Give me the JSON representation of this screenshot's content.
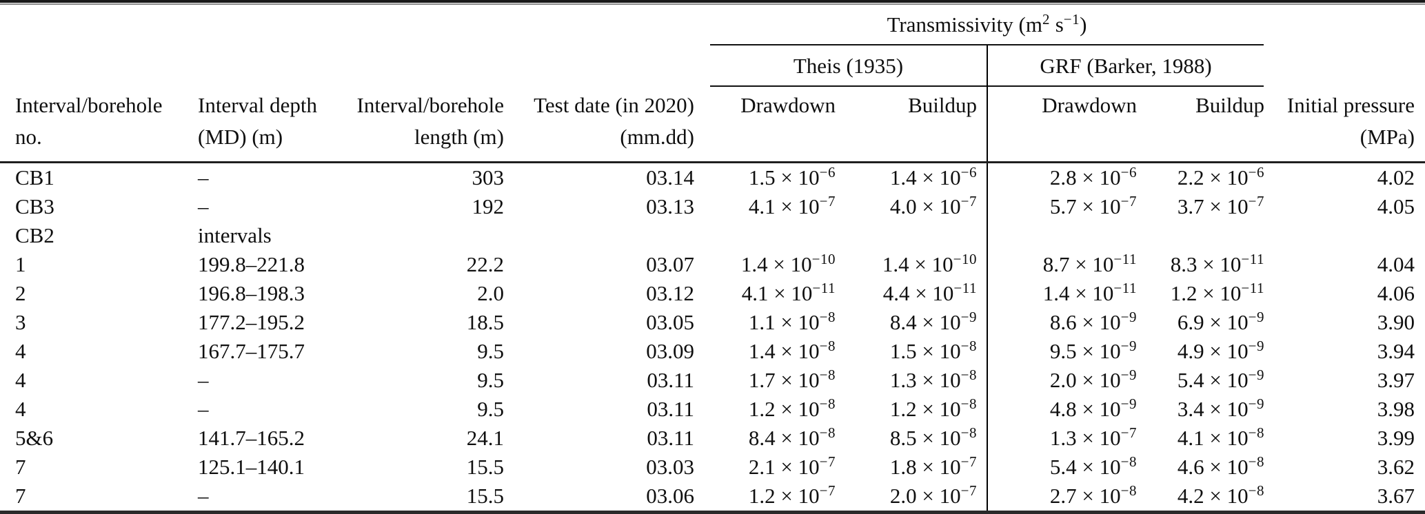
{
  "table": {
    "transmissivity_header": "Transmissivity (m^{2} s^{−1})",
    "theis_header": "Theis (1935)",
    "grf_header": "GRF (Barker, 1988)",
    "columns": [
      {
        "label": "Interval/borehole\nno."
      },
      {
        "label": "Interval depth\n(MD) (m)"
      },
      {
        "label": "Interval/borehole\nlength (m)"
      },
      {
        "label": "Test date (in 2020)\n(mm.dd)"
      },
      {
        "label": "Drawdown"
      },
      {
        "label": "Buildup"
      },
      {
        "label": "Drawdown"
      },
      {
        "label": "Buildup"
      },
      {
        "label": "Initial pressure\n(MPa)"
      }
    ],
    "rows": [
      [
        "CB1",
        "–",
        "303",
        "03.14",
        "1.5 × 10^{−6}",
        "1.4 × 10^{−6}",
        "2.8 × 10^{−6}",
        "2.2 × 10^{−6}",
        "4.02"
      ],
      [
        "CB3",
        "–",
        "192",
        "03.13",
        "4.1 × 10^{−7}",
        "4.0 × 10^{−7}",
        "5.7 × 10^{−7}",
        "3.7 × 10^{−7}",
        "4.05"
      ],
      [
        "CB2",
        "intervals",
        "",
        "",
        "",
        "",
        "",
        "",
        ""
      ],
      [
        "1",
        "199.8–221.8",
        "22.2",
        "03.07",
        "1.4 × 10^{−10}",
        "1.4 × 10^{−10}",
        "8.7 × 10^{−11}",
        "8.3 × 10^{−11}",
        "4.04"
      ],
      [
        "2",
        "196.8–198.3",
        "2.0",
        "03.12",
        "4.1 × 10^{−11}",
        "4.4 × 10^{−11}",
        "1.4 × 10^{−11}",
        "1.2 × 10^{−11}",
        "4.06"
      ],
      [
        "3",
        "177.2–195.2",
        "18.5",
        "03.05",
        "1.1 × 10^{−8}",
        "8.4 × 10^{−9}",
        "8.6 × 10^{−9}",
        "6.9 × 10^{−9}",
        "3.90"
      ],
      [
        "4",
        "167.7–175.7",
        "9.5",
        "03.09",
        "1.4 × 10^{−8}",
        "1.5 × 10^{−8}",
        "9.5 × 10^{−9}",
        "4.9 × 10^{−9}",
        "3.94"
      ],
      [
        "4",
        "–",
        "9.5",
        "03.11",
        "1.7 × 10^{−8}",
        "1.3 × 10^{−8}",
        "2.0 × 10^{−9}",
        "5.4 × 10^{−9}",
        "3.97"
      ],
      [
        "4",
        "–",
        "9.5",
        "03.11",
        "1.2 × 10^{−8}",
        "1.2 × 10^{−8}",
        "4.8 × 10^{−9}",
        "3.4 × 10^{−9}",
        "3.98"
      ],
      [
        "5&6",
        "141.7–165.2",
        "24.1",
        "03.11",
        "8.4 × 10^{−8}",
        "8.5 × 10^{−8}",
        "1.3 × 10^{−7}",
        "4.1 × 10^{−8}",
        "3.99"
      ],
      [
        "7",
        "125.1–140.1",
        "15.5",
        "03.03",
        "2.1 × 10^{−7}",
        "1.8 × 10^{−7}",
        "5.4 × 10^{−8}",
        "4.6 × 10^{−8}",
        "3.62"
      ],
      [
        "7",
        "–",
        "15.5",
        "03.06",
        "1.2 × 10^{−7}",
        "2.0 × 10^{−7}",
        "2.7 × 10^{−8}",
        "4.2 × 10^{−8}",
        "3.67"
      ]
    ]
  }
}
